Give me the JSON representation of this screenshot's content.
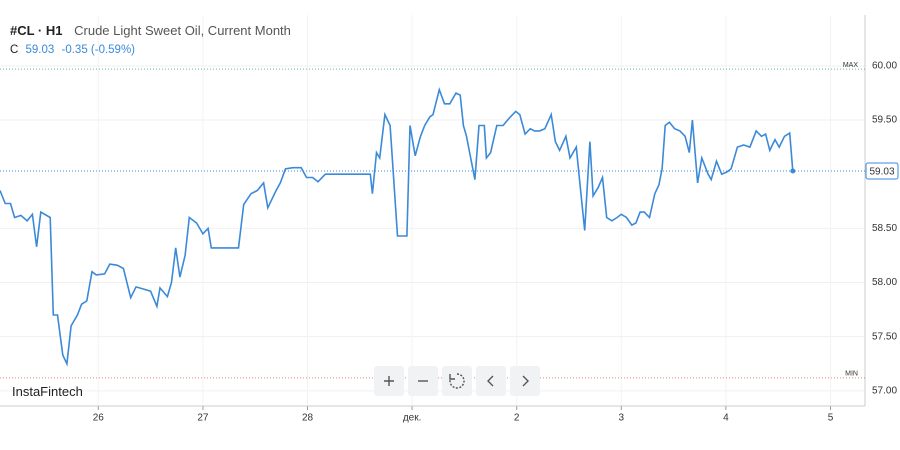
{
  "chart_data": {
    "type": "line",
    "symbol": "#CL · H1",
    "title": "Crude Light Sweet Oil, Current Month",
    "close_label": "C",
    "last_price": 59.03,
    "change_label": "-0.35 (-0.59%)",
    "watermark": "InstaFintech",
    "max_line": {
      "label": "MAX",
      "value": 59.97
    },
    "min_line": {
      "label": "MIN",
      "value": 57.12
    },
    "xlim": [
      25.06,
      33.33
    ],
    "xticks": [
      26,
      27,
      28,
      {
        "value": 29,
        "label": "дек."
      },
      {
        "value": 30,
        "label": "2"
      },
      {
        "value": 31,
        "label": "3"
      },
      {
        "value": 32,
        "label": "4"
      },
      {
        "value": 33,
        "label": "5"
      }
    ],
    "ylim": [
      56.86,
      60.47
    ],
    "yticks": [
      {
        "value": 57,
        "label": "57.00"
      },
      {
        "value": 57.5,
        "label": "57.50"
      },
      {
        "value": 58,
        "label": "58.00"
      },
      {
        "value": 58.5,
        "label": "58.50"
      },
      {
        "value": 59.5,
        "label": "59.50"
      },
      {
        "value": 60,
        "label": "60.00"
      }
    ],
    "grid": true,
    "series": [
      {
        "name": "#CL",
        "color": "#3b8ad9",
        "x": [
          25.06,
          25.11,
          25.16,
          25.2,
          25.26,
          25.32,
          25.37,
          25.41,
          25.45,
          25.54,
          25.57,
          25.61,
          25.66,
          25.7,
          25.74,
          25.8,
          25.84,
          25.89,
          25.94,
          25.98,
          26.06,
          26.11,
          26.18,
          26.24,
          26.31,
          26.36,
          26.43,
          26.5,
          26.56,
          26.59,
          26.66,
          26.7,
          26.74,
          26.78,
          26.83,
          26.87,
          26.94,
          27.0,
          27.05,
          27.08,
          27.34,
          27.39,
          27.46,
          27.52,
          27.58,
          27.62,
          27.7,
          27.74,
          27.79,
          27.86,
          27.94,
          27.99,
          28.05,
          28.1,
          28.17,
          28.6,
          28.62,
          28.66,
          28.69,
          28.74,
          28.79,
          28.86,
          28.95,
          28.98,
          29.03,
          29.08,
          29.12,
          29.17,
          29.2,
          29.26,
          29.31,
          29.36,
          29.42,
          29.46,
          29.49,
          29.52,
          29.56,
          29.6,
          29.64,
          29.69,
          29.71,
          29.75,
          29.81,
          29.87,
          29.93,
          29.99,
          30.03,
          30.08,
          30.13,
          30.17,
          30.22,
          30.27,
          30.33,
          30.37,
          30.41,
          30.47,
          30.51,
          30.57,
          30.6,
          30.65,
          30.7,
          30.73,
          30.78,
          30.82,
          30.86,
          30.91,
          30.96,
          31.0,
          31.05,
          31.1,
          31.14,
          31.18,
          31.22,
          31.27,
          31.32,
          31.36,
          31.39,
          31.42,
          31.46,
          31.51,
          31.56,
          31.61,
          31.65,
          31.68,
          31.73,
          31.77,
          31.83,
          31.86,
          31.91,
          31.96,
          32.01,
          32.05,
          32.11,
          32.17,
          32.23,
          32.29,
          32.34,
          32.38,
          32.42,
          32.47,
          32.51,
          32.56,
          32.61,
          32.64
        ],
        "values": [
          58.85,
          58.73,
          58.73,
          58.6,
          58.62,
          58.57,
          58.63,
          58.33,
          58.65,
          58.6,
          57.7,
          57.7,
          57.33,
          57.25,
          57.6,
          57.7,
          57.8,
          57.83,
          58.1,
          58.07,
          58.08,
          58.17,
          58.16,
          58.13,
          57.86,
          57.96,
          57.94,
          57.92,
          57.78,
          57.95,
          57.87,
          58.0,
          58.32,
          58.05,
          58.25,
          58.6,
          58.55,
          58.45,
          58.5,
          58.32,
          58.32,
          58.72,
          58.82,
          58.85,
          58.92,
          58.69,
          58.85,
          58.92,
          59.05,
          59.06,
          59.06,
          58.97,
          58.97,
          58.93,
          59.0,
          59.0,
          58.82,
          59.2,
          59.15,
          59.55,
          59.45,
          58.43,
          58.43,
          59.45,
          59.17,
          59.35,
          59.45,
          59.53,
          59.55,
          59.78,
          59.65,
          59.65,
          59.75,
          59.73,
          59.45,
          59.35,
          59.15,
          58.95,
          59.45,
          59.45,
          59.15,
          59.2,
          59.45,
          59.45,
          59.52,
          59.58,
          59.55,
          59.37,
          59.42,
          59.4,
          59.4,
          59.42,
          59.55,
          59.3,
          59.22,
          59.35,
          59.15,
          59.25,
          58.95,
          58.48,
          59.3,
          58.8,
          58.88,
          58.97,
          58.6,
          58.57,
          58.6,
          58.63,
          58.6,
          58.53,
          58.55,
          58.65,
          58.65,
          58.6,
          58.82,
          58.9,
          59.05,
          59.45,
          59.48,
          59.42,
          59.4,
          59.35,
          59.2,
          59.5,
          58.92,
          59.15,
          59.0,
          58.95,
          59.12,
          59.0,
          59.02,
          59.05,
          59.25,
          59.27,
          59.25,
          59.4,
          59.35,
          59.37,
          59.22,
          59.32,
          59.25,
          59.35,
          59.38,
          59.03
        ]
      }
    ]
  }
}
